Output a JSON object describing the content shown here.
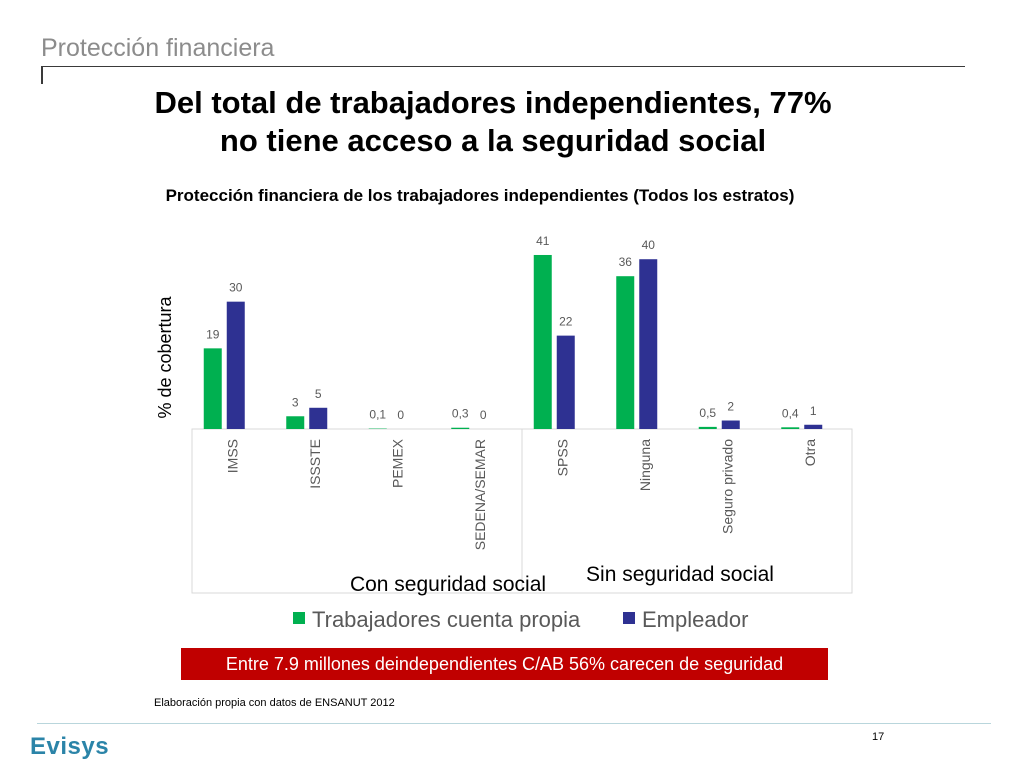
{
  "header": {
    "section_title": "Protección financiera",
    "headline_line1": "Del total de trabajadores independientes, 77%",
    "headline_line2": "no tiene acceso a la seguridad social"
  },
  "chart_data": {
    "type": "bar",
    "title": "Protección financiera de los trabajadores independientes (Todos los estratos)",
    "ylabel": "% de cobertura",
    "xlabel": "",
    "ylim": [
      0,
      45
    ],
    "categories": [
      "IMSS",
      "ISSSTE",
      "PEMEX",
      "SEDENA/SEMAR",
      "SPSS",
      "Ninguna",
      "Seguro privado",
      "Otra"
    ],
    "groups": [
      {
        "label": "Con seguridad social",
        "categories": [
          "IMSS",
          "ISSSTE",
          "PEMEX",
          "SEDENA/SEMAR"
        ]
      },
      {
        "label": "Sin seguridad social",
        "categories": [
          "SPSS",
          "Ninguna",
          "Seguro privado",
          "Otra"
        ]
      }
    ],
    "series": [
      {
        "name": "Trabajadores cuenta propia",
        "color": "#00b050",
        "values": [
          19,
          3,
          0.1,
          0.3,
          41,
          36,
          0.5,
          0.4
        ],
        "labels": [
          "19",
          "3",
          "0,1",
          "0,3",
          "41",
          "36",
          "0,5",
          "0,4"
        ]
      },
      {
        "name": "Empleador",
        "color": "#2e3192",
        "values": [
          30,
          5,
          0,
          0,
          22,
          40,
          2,
          1
        ],
        "labels": [
          "30",
          "5",
          "0",
          "0",
          "22",
          "40",
          "2",
          "1"
        ]
      }
    ],
    "legend_position": "bottom",
    "grid": false
  },
  "banner": {
    "text": "Entre 7.9 millones deindependientes C/AB 56% carecen de seguridad"
  },
  "footer": {
    "source": "Elaboración propia con datos de ENSANUT 2012",
    "logo": "Evisys",
    "page_number": "17"
  }
}
